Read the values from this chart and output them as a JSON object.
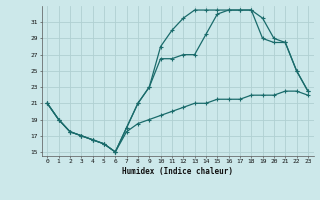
{
  "title": "",
  "xlabel": "Humidex (Indice chaleur)",
  "background_color": "#cce8ea",
  "grid_color": "#b0d0d2",
  "line_color": "#1a6b6b",
  "xlim": [
    -0.5,
    23.5
  ],
  "ylim": [
    14.5,
    33
  ],
  "xticks": [
    0,
    1,
    2,
    3,
    4,
    5,
    6,
    7,
    8,
    9,
    10,
    11,
    12,
    13,
    14,
    15,
    16,
    17,
    18,
    19,
    20,
    21,
    22,
    23
  ],
  "yticks": [
    15,
    17,
    19,
    21,
    23,
    25,
    27,
    29,
    31
  ],
  "line1_x": [
    0,
    1,
    2,
    3,
    4,
    5,
    6,
    7,
    8,
    9,
    10,
    11,
    12,
    13,
    14,
    15,
    16,
    17,
    18,
    19,
    20,
    21,
    22,
    23
  ],
  "line1_y": [
    21,
    19,
    17.5,
    17,
    16.5,
    16,
    15,
    17.5,
    18.5,
    19,
    19.5,
    20,
    20.5,
    21,
    21,
    21.5,
    21.5,
    21.5,
    22,
    22,
    22,
    22.5,
    22.5,
    22
  ],
  "line2_x": [
    0,
    1,
    2,
    3,
    4,
    5,
    6,
    7,
    8,
    9,
    10,
    11,
    12,
    13,
    14,
    15,
    16,
    17,
    18,
    19,
    20,
    21,
    22,
    23
  ],
  "line2_y": [
    21,
    19,
    17.5,
    17,
    16.5,
    16,
    15,
    18,
    21,
    23,
    26.5,
    26.5,
    27,
    27,
    29.5,
    32,
    32.5,
    32.5,
    32.5,
    29,
    28.5,
    28.5,
    25,
    22.5
  ],
  "line3_x": [
    0,
    1,
    2,
    3,
    4,
    5,
    6,
    7,
    8,
    9,
    10,
    11,
    12,
    13,
    14,
    15,
    16,
    17,
    18,
    19,
    20,
    21,
    22,
    23
  ],
  "line3_y": [
    21,
    19,
    17.5,
    17,
    16.5,
    16,
    15,
    18,
    21,
    23,
    28,
    30,
    31.5,
    32.5,
    32.5,
    32.5,
    32.5,
    32.5,
    32.5,
    31.5,
    29,
    28.5,
    25,
    22.5
  ]
}
